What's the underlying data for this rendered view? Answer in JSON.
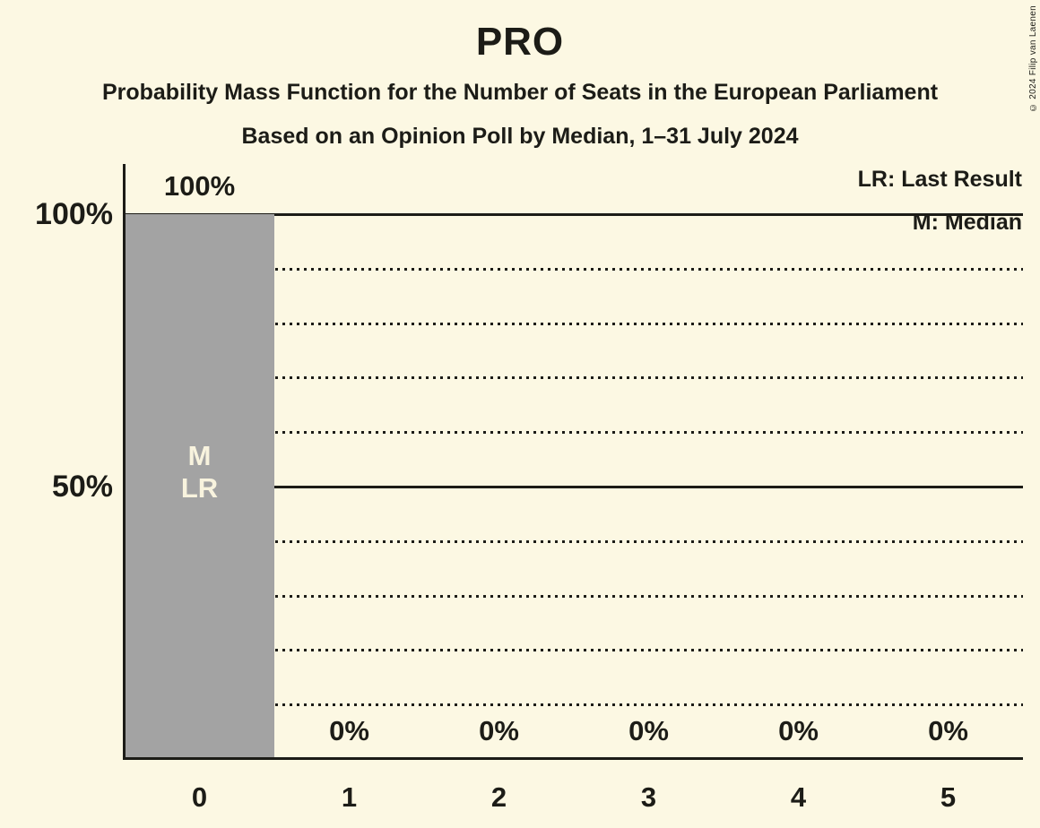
{
  "page": {
    "background_color": "#FCF8E3",
    "text_color": "#1C1C17"
  },
  "header": {
    "title": "PRO",
    "subtitle1": "Probability Mass Function for the Number of Seats in the European Parliament",
    "subtitle2": "Based on an Opinion Poll by Median, 1–31 July 2024"
  },
  "legend": {
    "lr_label": "LR: Last Result",
    "m_label": "M: Median"
  },
  "copyright": "© 2024 Filip van Laenen",
  "chart_data": {
    "type": "bar",
    "title": "PRO",
    "xlabel": "",
    "ylabel": "",
    "categories": [
      "0",
      "1",
      "2",
      "3",
      "4",
      "5"
    ],
    "values": [
      100,
      0,
      0,
      0,
      0,
      0
    ],
    "bar_labels": [
      "100%",
      "0%",
      "0%",
      "0%",
      "0%",
      "0%"
    ],
    "bar_annotations": [
      {
        "category": "0",
        "lines": [
          "M",
          "LR"
        ]
      }
    ],
    "yticks": [
      {
        "label": "100%",
        "pct": 100
      },
      {
        "label": "50%",
        "pct": 50
      }
    ],
    "ylim": [
      0,
      100
    ],
    "solid_gridlines_pct": [
      100,
      50
    ],
    "dotted_gridlines_pct": [
      90,
      80,
      70,
      60,
      40,
      30,
      20,
      10
    ],
    "legend_position": "top-right",
    "grid": "horizontal",
    "colors": {
      "bar": "#A3A3A3",
      "bar_annotation_text": "#F8F3DE",
      "line": "#1C1C17"
    }
  }
}
